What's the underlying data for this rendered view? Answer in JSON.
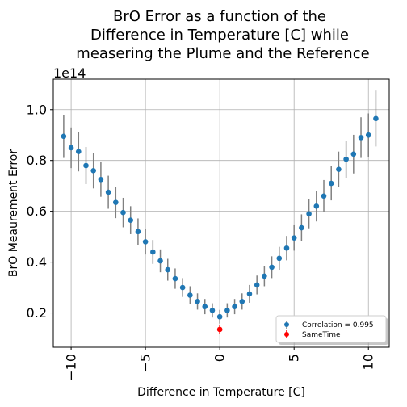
{
  "chart_data": {
    "type": "scatter",
    "title_lines": [
      "BrO Error as a function of the",
      "Difference in Temperature [C] while",
      "measering the Plume and the Reference"
    ],
    "xlabel": "Difference in Temperature [C]",
    "ylabel": "BrO Meaurement Error",
    "y_offset_label": "1e14",
    "xlim": [
      -11.2,
      11.4
    ],
    "ylim": [
      0.065,
      1.12
    ],
    "x_ticks": [
      -10,
      -5,
      0,
      5,
      10
    ],
    "x_tick_labels": [
      "−10",
      "−5",
      "0",
      "5",
      "10"
    ],
    "y_ticks": [
      0.2,
      0.4,
      0.6,
      0.8,
      1.0
    ],
    "y_tick_labels": [
      "0.2",
      "0.4",
      "0.6",
      "0.8",
      "1.0"
    ],
    "grid": true,
    "legend_position": "lower-right",
    "series": [
      {
        "name": "Correlation = 0.995",
        "color": "#1f77b4",
        "errorbar_color": "#808080",
        "x": [
          -10.5,
          -10.0,
          -9.5,
          -9.0,
          -8.5,
          -8.0,
          -7.5,
          -7.0,
          -6.5,
          -6.0,
          -5.5,
          -5.0,
          -4.5,
          -4.0,
          -3.5,
          -3.0,
          -2.5,
          -2.0,
          -1.5,
          -1.0,
          -0.5,
          0.0,
          0.5,
          1.0,
          1.5,
          2.0,
          2.5,
          3.0,
          3.5,
          4.0,
          4.5,
          5.0,
          5.5,
          6.0,
          6.5,
          7.0,
          7.5,
          8.0,
          8.5,
          9.0,
          9.5,
          10.0,
          10.5
        ],
        "y": [
          0.895,
          0.85,
          0.835,
          0.78,
          0.76,
          0.725,
          0.675,
          0.635,
          0.595,
          0.565,
          0.52,
          0.48,
          0.44,
          0.405,
          0.37,
          0.335,
          0.3,
          0.27,
          0.245,
          0.225,
          0.21,
          0.185,
          0.21,
          0.225,
          0.245,
          0.275,
          0.31,
          0.345,
          0.38,
          0.415,
          0.455,
          0.495,
          0.535,
          0.59,
          0.62,
          0.66,
          0.71,
          0.765,
          0.805,
          0.825,
          0.89,
          0.9,
          0.965
        ],
        "err": [
          0.085,
          0.08,
          0.078,
          0.073,
          0.07,
          0.068,
          0.065,
          0.062,
          0.058,
          0.055,
          0.052,
          0.05,
          0.047,
          0.045,
          0.043,
          0.04,
          0.037,
          0.035,
          0.032,
          0.03,
          0.028,
          0.027,
          0.028,
          0.03,
          0.032,
          0.035,
          0.037,
          0.04,
          0.043,
          0.045,
          0.048,
          0.05,
          0.053,
          0.057,
          0.06,
          0.063,
          0.067,
          0.07,
          0.073,
          0.076,
          0.08,
          0.085,
          0.11
        ]
      },
      {
        "name": "SameTime",
        "color": "#ff0000",
        "errorbar_color": "#ff0000",
        "x": [
          0.0
        ],
        "y": [
          0.135
        ],
        "err": [
          0.018
        ]
      }
    ]
  }
}
